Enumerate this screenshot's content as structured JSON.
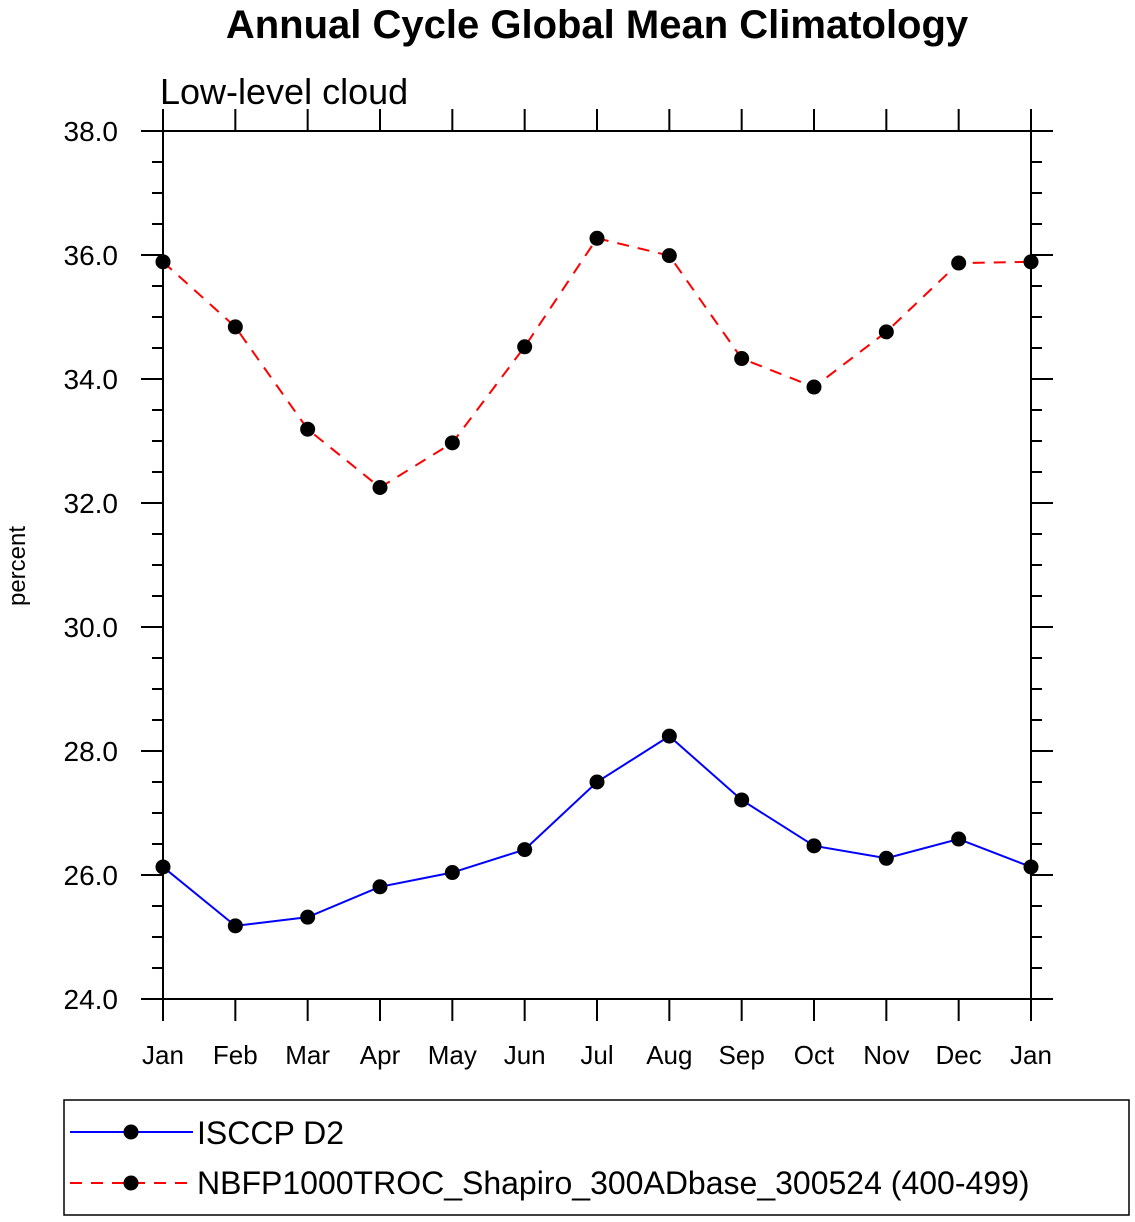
{
  "chart_data": {
    "type": "line",
    "title": "Annual Cycle Global Mean Climatology",
    "subtitle": "Low-level cloud",
    "xlabel": "",
    "ylabel": "percent",
    "categories": [
      "Jan",
      "Feb",
      "Mar",
      "Apr",
      "May",
      "Jun",
      "Jul",
      "Aug",
      "Sep",
      "Oct",
      "Nov",
      "Dec",
      "Jan"
    ],
    "ylim": [
      24.0,
      38.0
    ],
    "yticks": [
      "24.0",
      "26.0",
      "28.0",
      "30.0",
      "32.0",
      "34.0",
      "36.0",
      "38.0"
    ],
    "legend_position": "bottom",
    "series": [
      {
        "name": "ISCCP D2",
        "color": "#0000ff",
        "line_style": "solid",
        "marker": "filled-circle",
        "values": [
          26.13,
          25.18,
          25.32,
          25.81,
          26.04,
          26.41,
          27.5,
          28.24,
          27.21,
          26.47,
          26.27,
          26.58,
          26.13
        ]
      },
      {
        "name": "NBFP1000TROC_Shapiro_300ADbase_300524 (400-499)",
        "color": "#ff0000",
        "line_style": "dashed",
        "marker": "filled-circle",
        "values": [
          35.89,
          34.84,
          33.19,
          32.25,
          32.97,
          34.52,
          36.27,
          35.99,
          34.33,
          33.87,
          34.76,
          35.87,
          35.89
        ]
      }
    ]
  }
}
